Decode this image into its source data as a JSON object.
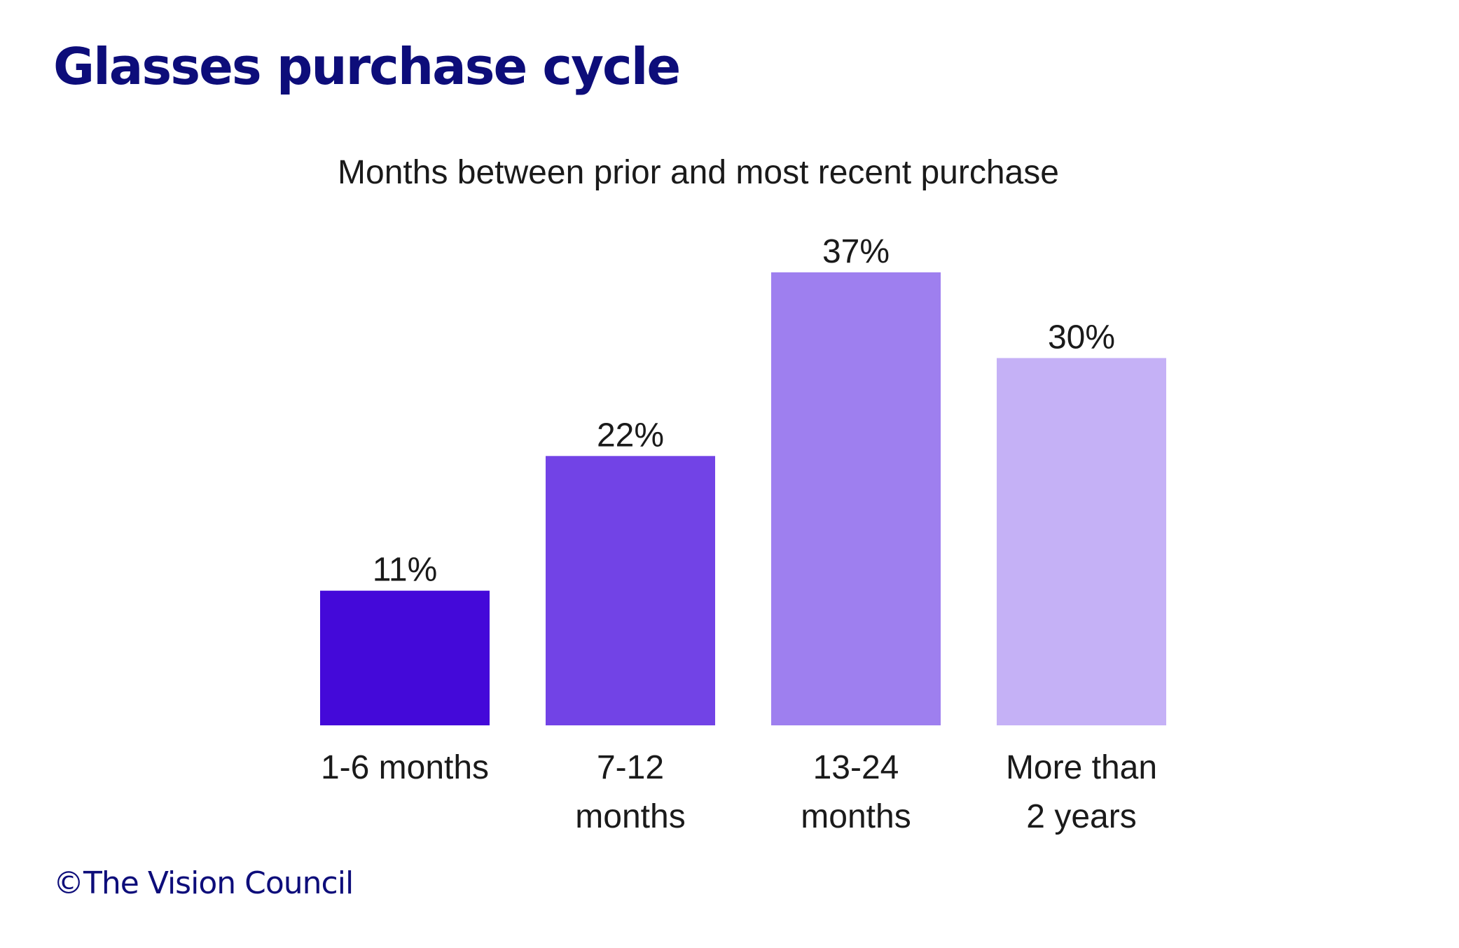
{
  "page": {
    "title": "Glasses purchase cycle",
    "footer": "©The Vision Council"
  },
  "chart_data": {
    "type": "bar",
    "title": "Months between prior and most recent purchase",
    "categories": [
      "1-6 months",
      "7-12 months",
      "13-24 months",
      "More than 2 years"
    ],
    "category_lines": [
      [
        "1-6 months"
      ],
      [
        "7-12",
        "months"
      ],
      [
        "13-24",
        "months"
      ],
      [
        "More than",
        "2 years"
      ]
    ],
    "values": [
      11,
      22,
      37,
      30
    ],
    "value_labels": [
      "11%",
      "22%",
      "37%",
      "30%"
    ],
    "colors": [
      "#4409d9",
      "#7243e6",
      "#9e7fef",
      "#c5b1f6"
    ],
    "xlabel": "",
    "ylabel": "",
    "ylim": [
      0,
      37
    ],
    "grid": false,
    "legend": "none"
  }
}
